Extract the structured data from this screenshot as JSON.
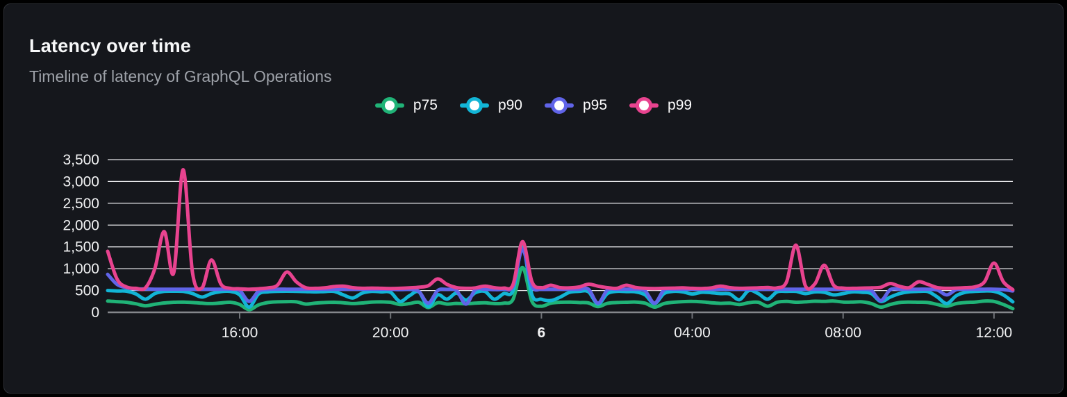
{
  "header": {
    "title": "Latency over time",
    "subtitle": "Timeline of latency of GraphQL Operations"
  },
  "legend": {
    "items": [
      {
        "label": "p75",
        "color": "#20b377"
      },
      {
        "label": "p90",
        "color": "#12b5d6"
      },
      {
        "label": "p95",
        "color": "#6064e8"
      },
      {
        "label": "p99",
        "color": "#e8438f"
      }
    ]
  },
  "chart_data": {
    "type": "line",
    "title": "Latency over time",
    "subtitle": "Timeline of latency of GraphQL Operations",
    "ylim": [
      0,
      3500
    ],
    "grid": "horizontal",
    "legend_position": "top-center",
    "y_axis": {
      "tick_values": [
        0,
        500,
        1000,
        1500,
        2000,
        2500,
        3000,
        3500
      ],
      "tick_labels": [
        "0",
        "500",
        "1,000",
        "1,500",
        "2,000",
        "2,500",
        "3,000",
        "3,500"
      ]
    },
    "x_axis": {
      "span_hours": 24,
      "ticks": [
        {
          "hour": 3.5,
          "label": "16:00",
          "bold": false
        },
        {
          "hour": 7.5,
          "label": "20:00",
          "bold": false
        },
        {
          "hour": 11.5,
          "label": "6",
          "bold": true
        },
        {
          "hour": 15.5,
          "label": "04:00",
          "bold": false
        },
        {
          "hour": 19.5,
          "label": "08:00",
          "bold": false
        },
        {
          "hour": 23.5,
          "label": "12:00",
          "bold": false
        }
      ]
    },
    "sample_start_hour": 0,
    "sample_step_hours": 0.25,
    "series": [
      {
        "name": "p75",
        "color": "#20b377",
        "values": [
          260,
          245,
          230,
          195,
          150,
          185,
          215,
          230,
          235,
          225,
          210,
          200,
          215,
          230,
          180,
          60,
          170,
          225,
          240,
          245,
          240,
          190,
          210,
          225,
          230,
          220,
          200,
          215,
          235,
          240,
          230,
          180,
          200,
          230,
          110,
          220,
          190,
          205,
          195,
          210,
          220,
          200,
          210,
          300,
          1030,
          250,
          140,
          210,
          230,
          235,
          225,
          215,
          130,
          205,
          225,
          230,
          235,
          210,
          120,
          200,
          230,
          245,
          250,
          240,
          220,
          205,
          210,
          180,
          220,
          230,
          140,
          230,
          250,
          230,
          240,
          255,
          250,
          260,
          235,
          235,
          240,
          200,
          120,
          180,
          225,
          235,
          230,
          225,
          180,
          140,
          200,
          225,
          235,
          260,
          250,
          180,
          85
        ]
      },
      {
        "name": "p90",
        "color": "#12b5d6",
        "values": [
          500,
          490,
          485,
          420,
          300,
          430,
          480,
          485,
          480,
          430,
          350,
          430,
          475,
          480,
          400,
          120,
          420,
          470,
          480,
          485,
          480,
          475,
          470,
          475,
          480,
          400,
          330,
          440,
          480,
          470,
          460,
          250,
          380,
          470,
          130,
          400,
          300,
          440,
          280,
          450,
          480,
          300,
          430,
          500,
          1500,
          400,
          300,
          270,
          350,
          460,
          480,
          470,
          190,
          430,
          480,
          475,
          470,
          400,
          200,
          430,
          480,
          470,
          420,
          460,
          450,
          430,
          420,
          290,
          500,
          430,
          300,
          470,
          480,
          480,
          430,
          470,
          460,
          400,
          430,
          470,
          460,
          430,
          250,
          350,
          430,
          470,
          480,
          475,
          350,
          200,
          380,
          460,
          480,
          490,
          480,
          400,
          240
        ]
      },
      {
        "name": "p95",
        "color": "#6064e8",
        "values": [
          870,
          640,
          565,
          540,
          535,
          530,
          530,
          530,
          530,
          530,
          530,
          530,
          530,
          530,
          500,
          250,
          480,
          525,
          530,
          530,
          530,
          530,
          530,
          530,
          530,
          530,
          530,
          530,
          530,
          530,
          530,
          520,
          525,
          480,
          210,
          500,
          525,
          500,
          190,
          520,
          530,
          520,
          530,
          600,
          1450,
          600,
          530,
          530,
          530,
          530,
          530,
          530,
          210,
          510,
          530,
          530,
          530,
          490,
          210,
          510,
          530,
          530,
          530,
          530,
          530,
          530,
          530,
          530,
          530,
          530,
          530,
          530,
          530,
          530,
          530,
          530,
          530,
          530,
          530,
          530,
          530,
          500,
          270,
          520,
          530,
          530,
          530,
          530,
          510,
          400,
          520,
          530,
          530,
          530,
          530,
          520,
          490
        ]
      },
      {
        "name": "p99",
        "color": "#e8438f",
        "values": [
          1400,
          760,
          580,
          550,
          560,
          1000,
          1850,
          900,
          3270,
          900,
          560,
          1200,
          650,
          550,
          540,
          530,
          540,
          560,
          620,
          925,
          700,
          565,
          550,
          560,
          590,
          600,
          565,
          550,
          555,
          550,
          545,
          550,
          560,
          575,
          610,
          765,
          640,
          565,
          550,
          560,
          600,
          565,
          555,
          640,
          1620,
          700,
          565,
          620,
          565,
          560,
          580,
          645,
          600,
          565,
          550,
          620,
          570,
          550,
          545,
          550,
          555,
          560,
          550,
          545,
          560,
          600,
          565,
          550,
          555,
          560,
          570,
          560,
          700,
          1540,
          610,
          650,
          1080,
          620,
          555,
          550,
          555,
          560,
          575,
          660,
          595,
          565,
          700,
          640,
          565,
          550,
          555,
          565,
          585,
          700,
          1130,
          700,
          520
        ]
      }
    ],
    "layout": {
      "plot_left": 155,
      "plot_right": 1458,
      "zero_y": 250,
      "top_y": 30,
      "grid_color": "#e4e4e7",
      "axis_color": "#85878c",
      "tick_mark_color": "#6f7277",
      "label_color": "#f2f3f4"
    }
  }
}
